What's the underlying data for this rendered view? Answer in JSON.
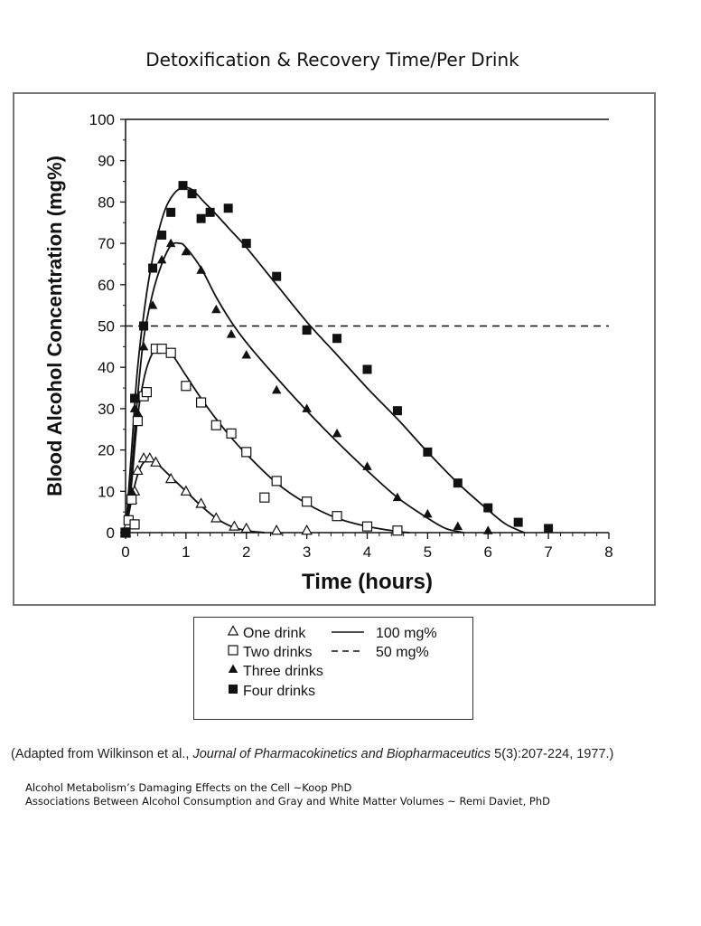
{
  "page": {
    "title": "Detoxification & Recovery Time/Per Drink",
    "citation": {
      "prefix": "(Adapted from Wilkinson et al.,",
      "journal": "Journal of Pharmacokinetics and Biopharmaceutics",
      "suffix": "5(3):207-224, 1977.)"
    },
    "sources": [
      "Alcohol Metabolism’s Damaging Effects on the Cell ~Koop PhD",
      "Associations Between Alcohol Consumption and Gray and White Matter Volumes ~ Remi Daviet, PhD"
    ]
  },
  "chart_data": {
    "type": "scatter",
    "xlabel": "Time (hours)",
    "ylabel": "Blood Alcohol Concentration (mg%)",
    "xlim": [
      0,
      8
    ],
    "ylim": [
      0,
      100
    ],
    "xticks": [
      "0",
      "1",
      "2",
      "3",
      "4",
      "5",
      "6",
      "7",
      "8"
    ],
    "yticks": [
      "0",
      "10",
      "20",
      "30",
      "40",
      "50",
      "60",
      "70",
      "80",
      "90",
      "100"
    ],
    "grid": false,
    "legend_position": "below",
    "reference_lines": [
      {
        "name": "100 mg%",
        "y": 100,
        "style": "solid"
      },
      {
        "name": "50 mg%",
        "y": 50,
        "style": "dashed"
      }
    ],
    "series": [
      {
        "name": "One drink",
        "marker": "open-triangle",
        "points": [
          [
            0,
            0
          ],
          [
            0.05,
            2
          ],
          [
            0.1,
            8
          ],
          [
            0.15,
            10
          ],
          [
            0.2,
            15
          ],
          [
            0.3,
            18
          ],
          [
            0.4,
            18
          ],
          [
            0.5,
            17
          ],
          [
            0.75,
            13
          ],
          [
            1,
            10
          ],
          [
            1.25,
            7
          ],
          [
            1.5,
            3.5
          ],
          [
            1.8,
            1.5
          ],
          [
            2,
            1
          ],
          [
            2.5,
            0.5
          ],
          [
            3,
            0.5
          ]
        ],
        "curve": [
          [
            0,
            0
          ],
          [
            0.1,
            8
          ],
          [
            0.2,
            14
          ],
          [
            0.3,
            17
          ],
          [
            0.4,
            17.5
          ],
          [
            0.5,
            17
          ],
          [
            0.75,
            13.5
          ],
          [
            1,
            10
          ],
          [
            1.25,
            6.5
          ],
          [
            1.5,
            3.5
          ],
          [
            1.75,
            1.5
          ],
          [
            2,
            0.5
          ],
          [
            2.3,
            0
          ]
        ]
      },
      {
        "name": "Two drinks",
        "marker": "open-square",
        "points": [
          [
            0,
            0
          ],
          [
            0.05,
            3
          ],
          [
            0.1,
            8
          ],
          [
            0.15,
            2
          ],
          [
            0.2,
            27
          ],
          [
            0.3,
            33
          ],
          [
            0.35,
            34
          ],
          [
            0.5,
            44.5
          ],
          [
            0.6,
            44.5
          ],
          [
            0.75,
            43.5
          ],
          [
            1,
            35.5
          ],
          [
            1.25,
            31.5
          ],
          [
            1.5,
            26
          ],
          [
            1.75,
            24
          ],
          [
            2,
            19.5
          ],
          [
            2.3,
            8.5
          ],
          [
            2.5,
            12.5
          ],
          [
            3,
            7.5
          ],
          [
            3.5,
            4
          ],
          [
            4,
            1.5
          ],
          [
            4.5,
            0.5
          ]
        ],
        "curve": [
          [
            0,
            0
          ],
          [
            0.1,
            12
          ],
          [
            0.2,
            28
          ],
          [
            0.3,
            37
          ],
          [
            0.4,
            42
          ],
          [
            0.5,
            44.5
          ],
          [
            0.6,
            45
          ],
          [
            0.75,
            43.5
          ],
          [
            1,
            38
          ],
          [
            1.25,
            32.5
          ],
          [
            1.5,
            27.5
          ],
          [
            1.75,
            23
          ],
          [
            2,
            19
          ],
          [
            2.5,
            12
          ],
          [
            3,
            7
          ],
          [
            3.5,
            3.5
          ],
          [
            4,
            1.5
          ],
          [
            4.5,
            0.3
          ],
          [
            4.7,
            0
          ]
        ]
      },
      {
        "name": "Three drinks",
        "marker": "filled-triangle",
        "points": [
          [
            0,
            0
          ],
          [
            0.1,
            10
          ],
          [
            0.15,
            30
          ],
          [
            0.2,
            29
          ],
          [
            0.3,
            45
          ],
          [
            0.45,
            55
          ],
          [
            0.6,
            66
          ],
          [
            0.75,
            70
          ],
          [
            1,
            68
          ],
          [
            1.25,
            63.5
          ],
          [
            1.5,
            54
          ],
          [
            1.75,
            48
          ],
          [
            2,
            43
          ],
          [
            2.5,
            34.5
          ],
          [
            3,
            30
          ],
          [
            3.5,
            24
          ],
          [
            4,
            16
          ],
          [
            4.5,
            8.5
          ],
          [
            5,
            4.5
          ],
          [
            5.5,
            1.5
          ],
          [
            6,
            0.5
          ]
        ],
        "curve": [
          [
            0,
            0
          ],
          [
            0.1,
            15
          ],
          [
            0.2,
            33
          ],
          [
            0.3,
            47
          ],
          [
            0.45,
            58
          ],
          [
            0.6,
            65
          ],
          [
            0.75,
            69.5
          ],
          [
            0.9,
            70
          ],
          [
            1,
            69
          ],
          [
            1.25,
            64
          ],
          [
            1.5,
            57
          ],
          [
            1.75,
            51
          ],
          [
            2,
            46
          ],
          [
            2.5,
            37.5
          ],
          [
            3,
            29.5
          ],
          [
            3.5,
            22
          ],
          [
            4,
            15
          ],
          [
            4.5,
            8.5
          ],
          [
            5,
            3.5
          ],
          [
            5.3,
            1
          ],
          [
            5.6,
            0
          ]
        ]
      },
      {
        "name": "Four drinks",
        "marker": "filled-square",
        "points": [
          [
            0,
            0
          ],
          [
            0.15,
            32.5
          ],
          [
            0.3,
            50
          ],
          [
            0.45,
            64
          ],
          [
            0.6,
            72
          ],
          [
            0.75,
            77.5
          ],
          [
            0.95,
            84
          ],
          [
            1.1,
            82
          ],
          [
            1.25,
            76
          ],
          [
            1.4,
            77.5
          ],
          [
            1.7,
            78.5
          ],
          [
            2,
            70
          ],
          [
            2.5,
            62
          ],
          [
            3,
            49
          ],
          [
            3.5,
            47
          ],
          [
            4,
            39.5
          ],
          [
            4.5,
            29.5
          ],
          [
            5,
            19.5
          ],
          [
            5.5,
            12
          ],
          [
            6,
            6
          ],
          [
            6.5,
            2.5
          ],
          [
            7,
            1
          ]
        ],
        "curve": [
          [
            0,
            0
          ],
          [
            0.1,
            20
          ],
          [
            0.2,
            40
          ],
          [
            0.35,
            58
          ],
          [
            0.5,
            70
          ],
          [
            0.65,
            78
          ],
          [
            0.8,
            82
          ],
          [
            0.95,
            83.5
          ],
          [
            1.1,
            83
          ],
          [
            1.3,
            80
          ],
          [
            1.5,
            77
          ],
          [
            1.75,
            73
          ],
          [
            2,
            69
          ],
          [
            2.5,
            60
          ],
          [
            3,
            51
          ],
          [
            3.5,
            43
          ],
          [
            4,
            35
          ],
          [
            4.5,
            27.5
          ],
          [
            5,
            19.5
          ],
          [
            5.5,
            12
          ],
          [
            6,
            5.5
          ],
          [
            6.3,
            2
          ],
          [
            6.6,
            0
          ]
        ]
      }
    ]
  }
}
